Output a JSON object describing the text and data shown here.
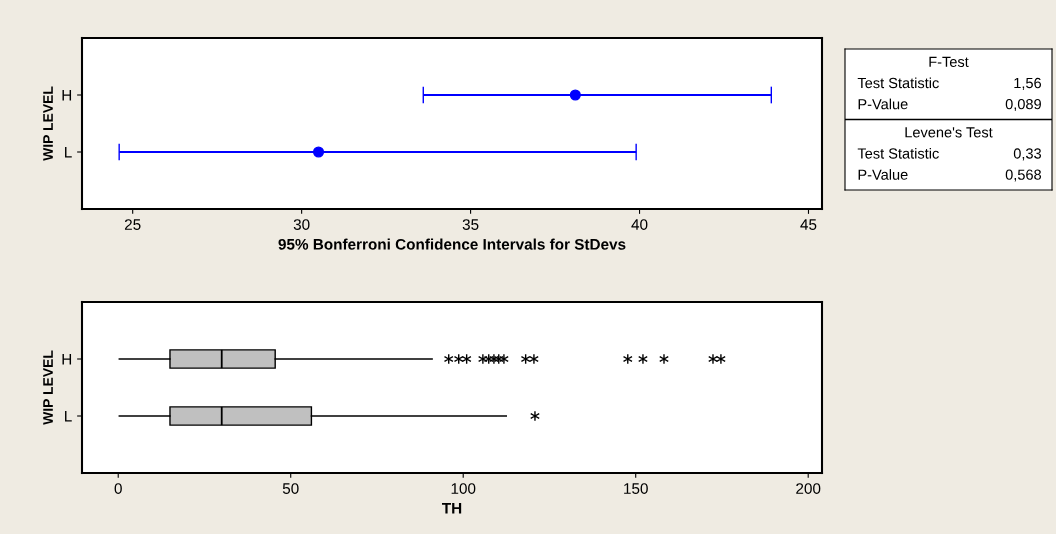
{
  "chart_data": [
    {
      "type": "scatter",
      "orientation": "horizontal",
      "categories": [
        "H",
        "L"
      ],
      "values": [
        38.1,
        30.5
      ],
      "errors": [
        [
          33.6,
          43.9
        ],
        [
          24.6,
          39.9
        ]
      ],
      "color": "#0000ff",
      "marker": "circle",
      "xlim": [
        23.5,
        45.4
      ],
      "xticks": [
        25,
        30,
        35,
        40,
        45
      ],
      "xlabel": "95% Bonferroni Confidence Intervals for StDevs",
      "ylabel": "WIP LEVEL",
      "grid": false,
      "legend": false
    },
    {
      "type": "box",
      "orientation": "horizontal",
      "categories": [
        "H",
        "L"
      ],
      "color": "#c0c0c0",
      "boxes": [
        {
          "low": 0.3,
          "q1": 15,
          "median": 30,
          "q3": 45.5,
          "high": 91,
          "outliers": [
            95.8,
            98.7,
            101,
            105.7,
            107.4,
            108.9,
            110.3,
            111.8,
            118.1,
            120.5,
            147.7,
            152.1,
            158.2,
            172.4,
            174.7
          ]
        },
        {
          "low": 0.3,
          "q1": 15,
          "median": 30,
          "q3": 56,
          "high": 112.5,
          "outliers": [
            120.8
          ]
        }
      ],
      "xlim": [
        -10.5,
        204
      ],
      "xticks": [
        0,
        50,
        100,
        150,
        200
      ],
      "xlabel": "TH",
      "ylabel": "WIP LEVEL",
      "grid": false,
      "legend": false
    },
    {
      "type": "other",
      "annotations": [
        "F-Test",
        "Test Statistic",
        "1,56",
        "P-Value",
        "0,089",
        "Levene's Test",
        "Test Statistic",
        "0,33",
        "P-Value",
        "0,568"
      ]
    }
  ]
}
